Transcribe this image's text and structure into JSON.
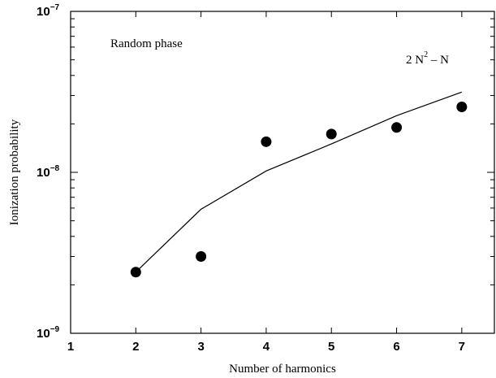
{
  "chart_data": {
    "type": "scatter",
    "title": "",
    "xlabel": "Number of harmonics",
    "ylabel": "Ionization probability",
    "xlim": [
      1,
      7.5
    ],
    "ylim": [
      1e-09,
      1e-07
    ],
    "yscale": "log",
    "grid": false,
    "x_ticks": [
      1,
      2,
      3,
      4,
      5,
      6,
      7
    ],
    "x_tick_labels": [
      "1",
      "2",
      "3",
      "4",
      "5",
      "6",
      "7"
    ],
    "y_major_ticks": [
      1e-09,
      1e-08,
      1e-07
    ],
    "y_tick_labels": [
      {
        "base": "10",
        "exp": "−9"
      },
      {
        "base": "10",
        "exp": "−8"
      },
      {
        "base": "10",
        "exp": "−7"
      }
    ],
    "series": [
      {
        "kind": "points",
        "marker": "filled-circle",
        "x": [
          2,
          3,
          4,
          5,
          6,
          7
        ],
        "y": [
          2.4e-09,
          3e-09,
          1.55e-08,
          1.73e-08,
          1.9e-08,
          2.55e-08
        ]
      },
      {
        "kind": "line",
        "x": [
          2,
          3,
          4,
          5,
          6,
          7
        ],
        "y": [
          2.4e-09,
          5.9e-09,
          1.02e-08,
          1.5e-08,
          2.25e-08,
          3.15e-08
        ]
      }
    ],
    "annotations": [
      {
        "text": "Random phase",
        "position": "top-left"
      },
      {
        "text_base": "2 N",
        "text_sup": "2",
        "text_tail": " – N",
        "position": "top-right"
      }
    ]
  }
}
